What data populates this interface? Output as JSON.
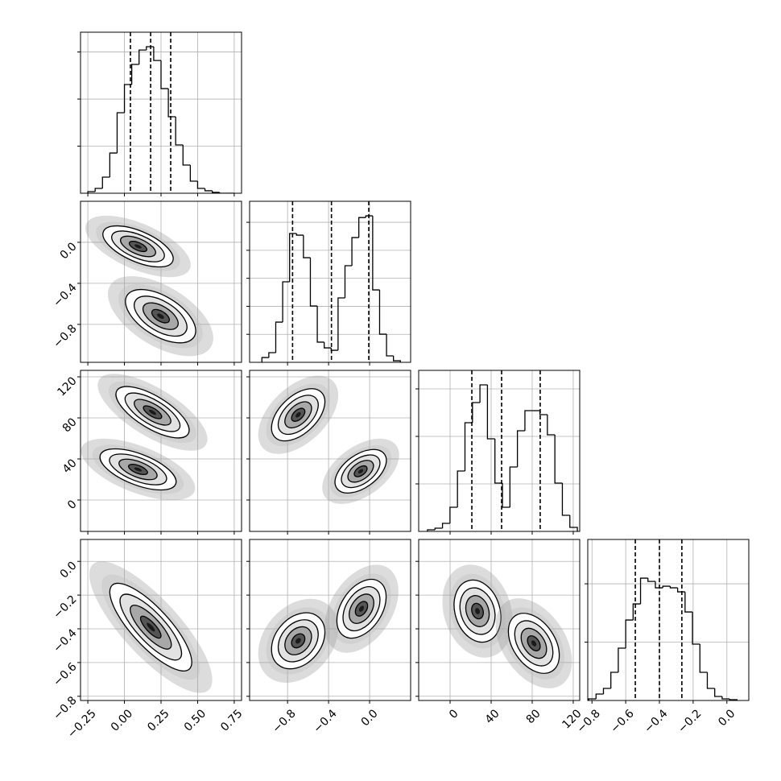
{
  "chart_data": [
    {
      "type": "histogram",
      "color": "#000000",
      "grid": true,
      "bins": [
        -0.25,
        -0.2,
        -0.15,
        -0.1,
        -0.05,
        0,
        0.05,
        0.1,
        0.15,
        0.2,
        0.25,
        0.3,
        0.35,
        0.4,
        0.45,
        0.5,
        0.55,
        0.6,
        0.65,
        0.7,
        0.75
      ],
      "counts": [
        17,
        51,
        171,
        427,
        855,
        1154,
        1368,
        1521,
        1556,
        1410,
        1111,
        812,
        513,
        299,
        128,
        51,
        26,
        9,
        0,
        0
      ],
      "quantiles": [
        0.041,
        0.179,
        0.316
      ],
      "xlim": [
        -0.3,
        0.8
      ],
      "xticks": [
        -0.25,
        0,
        0.25,
        0.5,
        0.75
      ],
      "ylim": [
        0,
        1710
      ],
      "yticks": [
        500,
        1000,
        1500
      ]
    },
    {
      "type": "contour",
      "color": "#000000",
      "grid": true,
      "clusters": [
        {
          "x": 0.093,
          "y": -0.04,
          "sx": 0.12,
          "sy": 0.1,
          "rho": -0.6
        },
        {
          "x": 0.247,
          "y": -0.72,
          "sx": 0.12,
          "sy": 0.13,
          "rho": -0.55
        }
      ],
      "xlim": [
        -0.3,
        0.8
      ],
      "xticks": [
        -0.25,
        0,
        0.25,
        0.5,
        0.75
      ],
      "ylim": [
        -1.17,
        0.4
      ],
      "yticks": [
        {
          "value": 0,
          "label": "0.0"
        },
        {
          "value": -0.4,
          "label": "−0.4"
        },
        {
          "value": -0.8,
          "label": "−0.8"
        }
      ]
    },
    {
      "type": "histogram",
      "color": "#000000",
      "grid": true,
      "bins": [
        -1.05,
        -0.9825,
        -0.915,
        -0.8475,
        -0.78,
        -0.7125,
        -0.645,
        -0.5775,
        -0.51,
        -0.4425,
        -0.375,
        -0.3075,
        -0.24,
        -0.1725,
        -0.105,
        -0.0375,
        0.03,
        0.0975,
        0.165,
        0.2325,
        0.3
      ],
      "counts": [
        34,
        69,
        287,
        575,
        920,
        908,
        747,
        402,
        144,
        103,
        86,
        460,
        690,
        891,
        1034,
        1046,
        517,
        201,
        46,
        11
      ],
      "quantiles": [
        -0.751,
        -0.372,
        -0.008
      ],
      "xlim": [
        -1.17,
        0.4
      ],
      "xticks": [
        -0.8,
        -0.4,
        0
      ],
      "ylim": [
        0,
        1150
      ],
      "yticks": [
        200,
        400,
        600,
        800,
        1000
      ]
    },
    {
      "type": "contour",
      "color": "#000000",
      "grid": true,
      "clusters": [
        {
          "x": 0.192,
          "y": 85.5,
          "sx": 0.125,
          "sy": 12.5,
          "rho": -0.7
        },
        {
          "x": 0.093,
          "y": 29.8,
          "sx": 0.13,
          "sy": 10,
          "rho": -0.6
        }
      ],
      "xlim": [
        -0.3,
        0.8
      ],
      "xticks": [
        -0.25,
        0,
        0.25,
        0.5,
        0.75
      ],
      "ylim": [
        -30.6,
        126.3
      ],
      "yticks": [
        0,
        40,
        80,
        120
      ]
    },
    {
      "type": "contour",
      "color": "#000000",
      "grid": true,
      "clusters": [
        {
          "x": -0.696,
          "y": 83,
          "sx": 0.13,
          "sy": 12.7,
          "rho": 0.5
        },
        {
          "x": -0.087,
          "y": 28,
          "sx": 0.125,
          "sy": 10.6,
          "rho": 0.5
        }
      ],
      "xlim": [
        -1.17,
        0.4
      ],
      "xticks": [
        -0.8,
        -0.4,
        0
      ],
      "ylim": [
        -30.6,
        126.3
      ],
      "yticks": [
        0,
        40,
        80,
        120
      ]
    },
    {
      "type": "histogram",
      "color": "#000000",
      "grid": true,
      "bins": [
        -22,
        -14.7,
        -7.4,
        -0.1,
        7.2,
        14.5,
        21.8,
        29.1,
        36.4,
        43.7,
        51,
        58.3,
        65.6,
        72.9,
        80.2,
        87.5,
        94.8,
        102.1,
        109.4,
        116.7,
        124
      ],
      "counts": [
        34,
        68,
        169,
        508,
        1271,
        2288,
        2712,
        3085,
        1949,
        1017,
        508,
        1356,
        2119,
        2542,
        2542,
        2458,
        2034,
        1017,
        339,
        85
      ],
      "quantiles": [
        21.2,
        50.2,
        87.8
      ],
      "xlim": [
        -30.6,
        126.3
      ],
      "xticks": [
        0,
        40,
        80,
        120
      ],
      "ylim": [
        0,
        3390
      ],
      "yticks": [
        1000,
        2000,
        3000
      ]
    },
    {
      "type": "contour",
      "color": "#000000",
      "grid": true,
      "clusters": [
        {
          "x": 0.18,
          "y": -0.39,
          "sx": 0.14,
          "sy": 0.13,
          "rho": -0.8
        }
      ],
      "xlim": [
        -0.3,
        0.8
      ],
      "xticks": [
        {
          "value": -0.25,
          "label": "−0.25"
        },
        {
          "value": 0,
          "label": "0.00"
        },
        0.25,
        {
          "value": 0.5,
          "label": "0.50"
        },
        0.75
      ],
      "ylim": [
        -0.825,
        0.13
      ],
      "yticks": [
        {
          "value": 0,
          "label": "0.0"
        },
        {
          "value": -0.2,
          "label": "−0.2"
        },
        {
          "value": -0.4,
          "label": "−0.4"
        },
        {
          "value": -0.6,
          "label": "−0.6"
        },
        {
          "value": -0.8,
          "label": "−0.8"
        }
      ]
    },
    {
      "type": "contour",
      "color": "#000000",
      "grid": true,
      "clusters": [
        {
          "x": -0.696,
          "y": -0.471,
          "sx": 0.13,
          "sy": 0.083,
          "rho": 0.3
        },
        {
          "x": -0.079,
          "y": -0.281,
          "sx": 0.12,
          "sy": 0.087,
          "rho": 0.4
        }
      ],
      "xlim": [
        -1.17,
        0.4
      ],
      "xticks": [
        {
          "value": -0.8,
          "label": "−0.8"
        },
        {
          "value": -0.4,
          "label": "−0.4"
        },
        {
          "value": 0,
          "label": "0.0"
        }
      ],
      "ylim": [
        -0.825,
        0.13
      ],
      "yticks": [
        0,
        -0.2,
        -0.4,
        -0.6,
        -0.8
      ]
    },
    {
      "type": "contour",
      "color": "#000000",
      "grid": true,
      "clusters": [
        {
          "x": 26.7,
          "y": -0.295,
          "sx": 11.4,
          "sy": 0.092,
          "rho": -0.2
        },
        {
          "x": 81.6,
          "y": -0.486,
          "sx": 12.4,
          "sy": 0.089,
          "rho": -0.4
        }
      ],
      "xlim": [
        -30.6,
        126.3
      ],
      "xticks": [
        0,
        40,
        80,
        120
      ],
      "ylim": [
        -0.825,
        0.13
      ],
      "yticks": [
        0,
        -0.2,
        -0.4,
        -0.6,
        -0.8
      ]
    },
    {
      "type": "histogram",
      "color": "#000000",
      "grid": true,
      "bins": [
        -0.82,
        -0.776,
        -0.732,
        -0.688,
        -0.644,
        -0.6,
        -0.556,
        -0.512,
        -0.468,
        -0.424,
        -0.38,
        -0.336,
        -0.292,
        -0.248,
        -0.204,
        -0.16,
        -0.116,
        -0.072,
        -0.028,
        0.016,
        0.06
      ],
      "counts": [
        28,
        110,
        207,
        483,
        897,
        1379,
        1655,
        2097,
        2041,
        1931,
        1959,
        1931,
        1862,
        1517,
        966,
        483,
        207,
        69,
        28,
        14
      ],
      "quantiles": [
        -0.543,
        -0.4,
        -0.267
      ],
      "xlim": [
        -0.825,
        0.13
      ],
      "xticks": [
        {
          "value": -0.8,
          "label": "−0.8"
        },
        {
          "value": -0.6,
          "label": "−0.6"
        },
        {
          "value": -0.4,
          "label": "−0.4"
        },
        {
          "value": -0.2,
          "label": "−0.2"
        },
        {
          "value": 0,
          "label": "0.0"
        }
      ],
      "ylim": [
        0,
        2760
      ],
      "yticks": [
        1000,
        2000
      ]
    }
  ]
}
